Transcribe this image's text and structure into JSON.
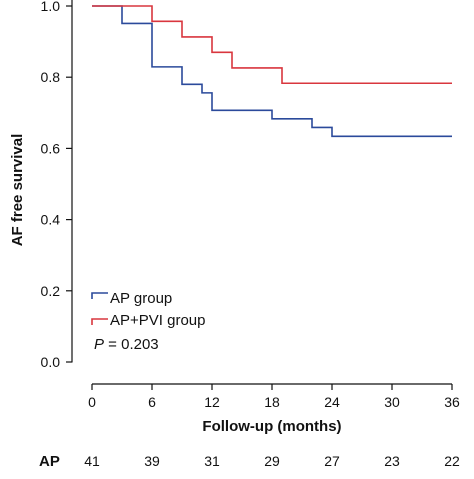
{
  "chart_data": {
    "type": "line",
    "subtype": "step",
    "ylabel": "AF free survival",
    "xlabel": "Follow-up (months)",
    "xlim": [
      0,
      36
    ],
    "ylim": [
      0.0,
      1.0
    ],
    "x_ticks": [
      "0",
      "6",
      "12",
      "18",
      "24",
      "30",
      "36"
    ],
    "y_ticks": [
      "0.0",
      "0.2",
      "0.4",
      "0.6",
      "0.8",
      "1.0"
    ],
    "grid": false,
    "legend_position": "bottom-left",
    "series": [
      {
        "name": "AP group",
        "color": "#2b4a9b",
        "steps": [
          [
            0,
            1.0
          ],
          [
            3,
            0.951
          ],
          [
            6,
            0.829
          ],
          [
            9,
            0.78
          ],
          [
            11,
            0.756
          ],
          [
            12,
            0.707
          ],
          [
            18,
            0.683
          ],
          [
            22,
            0.659
          ],
          [
            24,
            0.634
          ],
          [
            36,
            0.634
          ]
        ]
      },
      {
        "name": "AP+PVI group",
        "color": "#d9363e",
        "steps": [
          [
            0,
            1.0
          ],
          [
            6,
            0.957
          ],
          [
            9,
            0.913
          ],
          [
            12,
            0.87
          ],
          [
            14,
            0.826
          ],
          [
            19,
            0.783
          ],
          [
            36,
            0.783
          ]
        ]
      }
    ],
    "annotation": {
      "italic": "P",
      "rest": " = 0.203"
    },
    "risk_table": {
      "label": "AP",
      "x": [
        0,
        6,
        12,
        18,
        24,
        30,
        36
      ],
      "values": [
        "41",
        "39",
        "31",
        "29",
        "27",
        "23",
        "22"
      ]
    }
  }
}
